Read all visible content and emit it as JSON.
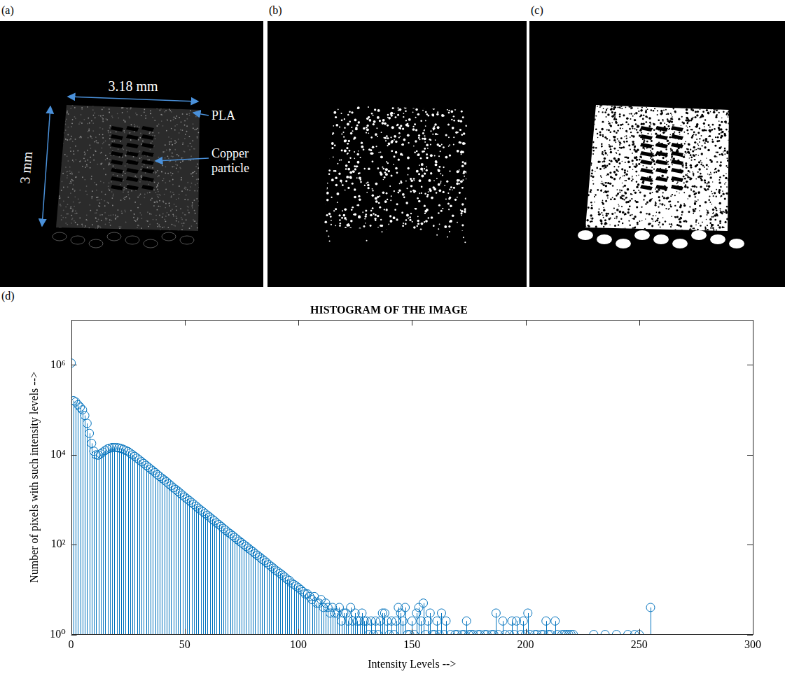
{
  "figure": {
    "panels": [
      {
        "letter": "(a)",
        "dimensions": {
          "width": "3.18 mm",
          "height": "3 mm"
        },
        "labels": [
          "PLA",
          "Copper particle"
        ]
      },
      {
        "letter": "(b)"
      },
      {
        "letter": "(c)"
      },
      {
        "letter": "(d)"
      }
    ]
  },
  "chart_data": {
    "type": "stem",
    "title": "HISTOGRAM OF THE IMAGE",
    "x_label": "Intensity Levels -->",
    "y_label": "Number of pixels with such intensity levels -->",
    "x": [
      0,
      1,
      2,
      3,
      4,
      5,
      6,
      7,
      8,
      9,
      10,
      11,
      12,
      13,
      14,
      15,
      16,
      17,
      18,
      19,
      20,
      21,
      22,
      23,
      24,
      25,
      26,
      27,
      28,
      29,
      30,
      31,
      32,
      33,
      34,
      35,
      36,
      37,
      38,
      39,
      40,
      41,
      42,
      43,
      44,
      45,
      46,
      47,
      48,
      49,
      50,
      51,
      52,
      53,
      54,
      55,
      56,
      57,
      58,
      59,
      60,
      61,
      62,
      63,
      64,
      65,
      66,
      67,
      68,
      69,
      70,
      71,
      72,
      73,
      74,
      75,
      76,
      77,
      78,
      79,
      80,
      81,
      82,
      83,
      84,
      85,
      86,
      87,
      88,
      89,
      90,
      91,
      92,
      93,
      94,
      95,
      96,
      97,
      98,
      99,
      100,
      101,
      102,
      103,
      104,
      105,
      106,
      107,
      108,
      109,
      110,
      111,
      112,
      113,
      114,
      115,
      116,
      117,
      118,
      119,
      120,
      121,
      122,
      123,
      124,
      125,
      126,
      127,
      128,
      129,
      130,
      131,
      132,
      133,
      134,
      135,
      136,
      137,
      138,
      139,
      140,
      141,
      142,
      143,
      144,
      145,
      146,
      147,
      148,
      149,
      150,
      151,
      152,
      153,
      154,
      155,
      156,
      157,
      158,
      159,
      160,
      161,
      162,
      163,
      164,
      165,
      166,
      167,
      168,
      169,
      170,
      171,
      172,
      173,
      174,
      175,
      176,
      177,
      178,
      179,
      180,
      181,
      182,
      183,
      184,
      185,
      186,
      187,
      188,
      189,
      190,
      191,
      192,
      193,
      194,
      195,
      196,
      197,
      198,
      199,
      200,
      201,
      202,
      203,
      204,
      205,
      206,
      207,
      208,
      209,
      210,
      211,
      212,
      213,
      214,
      215,
      216,
      217,
      218,
      219,
      220,
      221,
      222,
      223,
      224,
      225,
      226,
      227,
      228,
      229,
      230,
      231,
      232,
      233,
      234,
      235,
      236,
      237,
      238,
      239,
      240,
      241,
      242,
      243,
      244,
      245,
      246,
      247,
      248,
      249,
      250,
      251,
      252,
      253,
      254,
      255
    ],
    "values": [
      1100000,
      160000,
      150000,
      130000,
      115000,
      100000,
      75000,
      50000,
      30000,
      18000,
      12000,
      10000,
      9800,
      10500,
      11500,
      12500,
      13500,
      14000,
      14500,
      14500,
      14500,
      14200,
      13800,
      13200,
      12500,
      11800,
      10900,
      10000,
      9200,
      8400,
      7700,
      7000,
      6400,
      5800,
      5300,
      4800,
      4400,
      4000,
      3600,
      3300,
      3000,
      2750,
      2500,
      2250,
      2050,
      1850,
      1700,
      1550,
      1400,
      1270,
      1150,
      1050,
      960,
      870,
      790,
      720,
      650,
      590,
      540,
      490,
      450,
      410,
      370,
      340,
      305,
      280,
      255,
      230,
      210,
      190,
      175,
      160,
      145,
      132,
      120,
      110,
      100,
      92,
      84,
      76,
      70,
      63,
      58,
      53,
      48,
      44,
      40,
      36,
      33,
      30,
      27,
      25,
      23,
      21,
      19,
      17,
      16,
      14,
      13,
      12,
      11,
      10,
      9,
      8,
      8,
      7,
      6,
      7,
      5,
      5,
      6,
      4,
      5,
      4,
      3,
      4,
      3,
      3,
      4,
      2,
      3,
      3,
      2,
      4,
      2,
      3,
      2,
      2,
      3,
      2,
      2,
      1,
      2,
      1,
      2,
      1,
      2,
      3,
      3,
      2,
      1,
      2,
      1,
      2,
      4,
      3,
      2,
      4,
      1,
      1,
      2,
      1,
      3,
      4,
      2,
      5,
      1,
      2,
      3,
      1,
      1,
      2,
      1,
      3,
      1,
      2,
      null,
      1,
      null,
      1,
      1,
      null,
      1,
      1,
      2,
      1,
      1,
      1,
      null,
      1,
      1,
      null,
      1,
      1,
      null,
      1,
      1,
      3,
      1,
      null,
      2,
      1,
      null,
      1,
      2,
      1,
      2,
      null,
      1,
      2,
      1,
      3,
      1,
      null,
      1,
      1,
      null,
      1,
      1,
      2,
      1,
      1,
      null,
      2,
      1,
      null,
      1,
      1,
      1,
      1,
      1,
      1,
      null,
      null,
      null,
      null,
      null,
      null,
      null,
      null,
      1,
      null,
      null,
      null,
      null,
      1,
      null,
      null,
      null,
      null,
      1,
      null,
      null,
      null,
      null,
      1,
      null,
      null,
      1,
      null,
      1,
      null,
      null,
      null,
      null,
      4
    ],
    "color": "#0072bd",
    "marker": "circle",
    "log": "y",
    "grid": false,
    "xlim": [
      0,
      300
    ],
    "xticks": [
      0,
      50,
      100,
      150,
      200,
      250,
      300
    ],
    "ylim": [
      1,
      10000000
    ],
    "yticks": [
      {
        "value": 1,
        "label": "10⁰"
      },
      {
        "value": 100,
        "label": "10²"
      },
      {
        "value": 10000,
        "label": "10⁴"
      },
      {
        "value": 1000000,
        "label": "10⁶"
      }
    ]
  }
}
